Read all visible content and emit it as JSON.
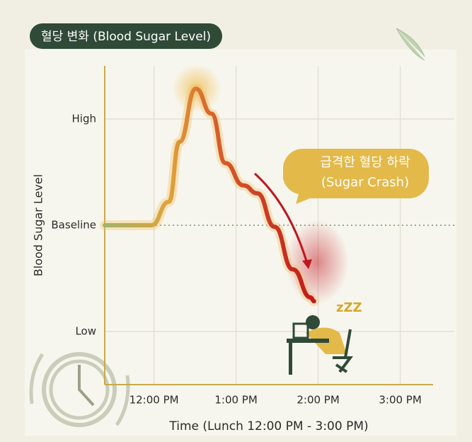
{
  "chart_data": {
    "type": "line",
    "title": "혈당 변화 (Blood Sugar Level)",
    "y_label": "Blood Sugar Level",
    "x_label": "Time (Lunch 12:00 PM - 3:00 PM)",
    "annotations": [
      "급격한 혈당 하락",
      "(Sugar Crash)",
      "zZZ"
    ],
    "x": [
      11.4,
      11.97,
      12.18,
      12.31,
      12.51,
      12.7,
      12.87,
      13.09,
      13.26,
      13.47,
      13.69,
      13.91,
      13.95
    ],
    "series": [
      {
        "name": "Blood Sugar",
        "color": "#c62a2a",
        "values": [
          3.0,
          3.0,
          3.44,
          4.57,
          5.57,
          5.1,
          4.17,
          3.75,
          3.6,
          2.97,
          2.17,
          1.64,
          1.57
        ]
      }
    ],
    "xlim": [
      11.4,
      15.4
    ],
    "xticks": [
      {
        "value": 12,
        "label": "12:00 PM"
      },
      {
        "value": 13,
        "label": "1:00 PM"
      },
      {
        "value": 14,
        "label": "2:00 PM"
      },
      {
        "value": 15,
        "label": "3:00 PM"
      }
    ],
    "ylim": [
      0,
      6
    ],
    "yticks": [
      {
        "value": 1,
        "label": "Low"
      },
      {
        "value": 3,
        "label": "Baseline"
      },
      {
        "value": 5,
        "label": "High"
      }
    ],
    "grid": true
  }
}
